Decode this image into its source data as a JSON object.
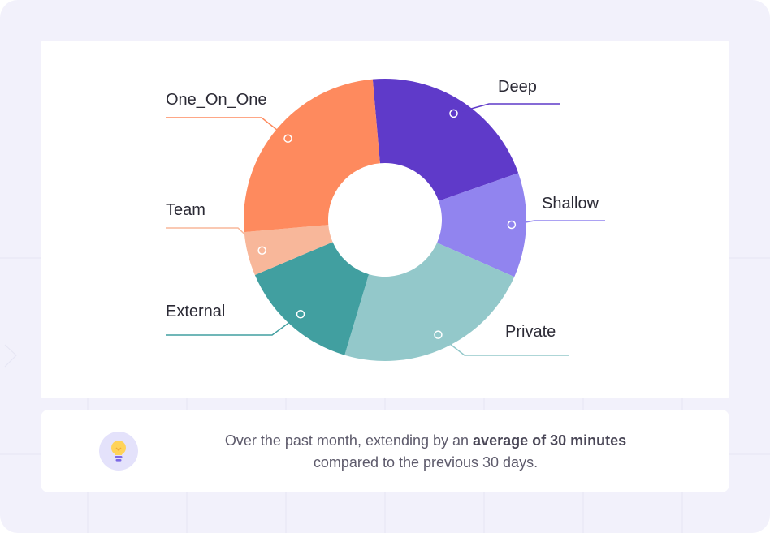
{
  "chart_data": {
    "type": "pie",
    "donut": true,
    "labels": [
      "Deep",
      "Shallow",
      "Private",
      "External",
      "Team",
      "One_On_One"
    ],
    "values": [
      21,
      12,
      23,
      14,
      5,
      25
    ],
    "colors": [
      "#5f3ac9",
      "#9184ef",
      "#93c8ca",
      "#419fa0",
      "#f8b79a",
      "#fe8a5e"
    ],
    "title": "",
    "legend": "none"
  },
  "insight": {
    "text_before": "Over the past month, extending by an ",
    "text_bold": "average of 30 minutes",
    "text_after": "compared to the previous 30 days.",
    "icon": "lightbulb-icon"
  }
}
